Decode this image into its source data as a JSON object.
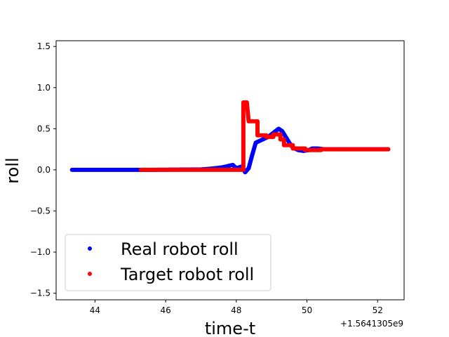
{
  "chart_data": {
    "type": "scatter",
    "title": "",
    "xlabel": "time-t",
    "ylabel": "roll",
    "x_offset_label": "+1.5641305e9",
    "xlim": [
      42.9,
      52.75
    ],
    "ylim": [
      -1.58,
      1.57
    ],
    "x_ticks": [
      44,
      46,
      48,
      50,
      52
    ],
    "x_tick_labels": [
      "44",
      "46",
      "48",
      "50",
      "52"
    ],
    "y_ticks": [
      -1.5,
      -1.0,
      -0.5,
      0.0,
      0.5,
      1.0,
      1.5
    ],
    "y_tick_labels": [
      "−1.5",
      "−1.0",
      "−0.5",
      "0.0",
      "0.5",
      "1.0",
      "1.5"
    ],
    "grid": false,
    "legend_position": "lower-left",
    "series": [
      {
        "name": "Real robot roll",
        "color": "#0000ff",
        "marker": "circle",
        "points": [
          [
            43.35,
            0.0
          ],
          [
            45.5,
            0.0
          ],
          [
            47.0,
            0.005
          ],
          [
            47.3,
            0.015
          ],
          [
            47.6,
            0.03
          ],
          [
            47.8,
            0.05
          ],
          [
            47.9,
            0.06
          ],
          [
            48.0,
            0.02
          ],
          [
            48.15,
            0.04
          ],
          [
            48.25,
            -0.03
          ],
          [
            48.35,
            0.02
          ],
          [
            48.45,
            0.18
          ],
          [
            48.55,
            0.33
          ],
          [
            48.7,
            0.36
          ],
          [
            48.9,
            0.4
          ],
          [
            49.05,
            0.45
          ],
          [
            49.2,
            0.5
          ],
          [
            49.3,
            0.47
          ],
          [
            49.4,
            0.4
          ],
          [
            49.5,
            0.33
          ],
          [
            49.6,
            0.27
          ],
          [
            49.75,
            0.24
          ],
          [
            49.9,
            0.23
          ],
          [
            50.05,
            0.24
          ],
          [
            50.15,
            0.26
          ],
          [
            50.3,
            0.26
          ],
          [
            50.5,
            0.25
          ],
          [
            51.0,
            0.25
          ],
          [
            51.5,
            0.25
          ],
          [
            52.0,
            0.25
          ],
          [
            52.3,
            0.25
          ]
        ]
      },
      {
        "name": "Target robot roll",
        "color": "#ff0000",
        "marker": "circle",
        "points": [
          [
            45.3,
            0.0
          ],
          [
            47.0,
            0.0
          ],
          [
            48.2,
            0.0
          ],
          [
            48.2,
            0.82
          ],
          [
            48.3,
            0.82
          ],
          [
            48.35,
            0.59
          ],
          [
            48.6,
            0.59
          ],
          [
            48.6,
            0.42
          ],
          [
            48.85,
            0.42
          ],
          [
            48.85,
            0.4
          ],
          [
            49.05,
            0.4
          ],
          [
            49.05,
            0.43
          ],
          [
            49.25,
            0.43
          ],
          [
            49.25,
            0.37
          ],
          [
            49.35,
            0.37
          ],
          [
            49.35,
            0.3
          ],
          [
            49.6,
            0.3
          ],
          [
            49.6,
            0.26
          ],
          [
            49.95,
            0.26
          ],
          [
            49.95,
            0.24
          ],
          [
            50.4,
            0.24
          ],
          [
            50.4,
            0.25
          ],
          [
            52.3,
            0.25
          ]
        ]
      }
    ]
  }
}
